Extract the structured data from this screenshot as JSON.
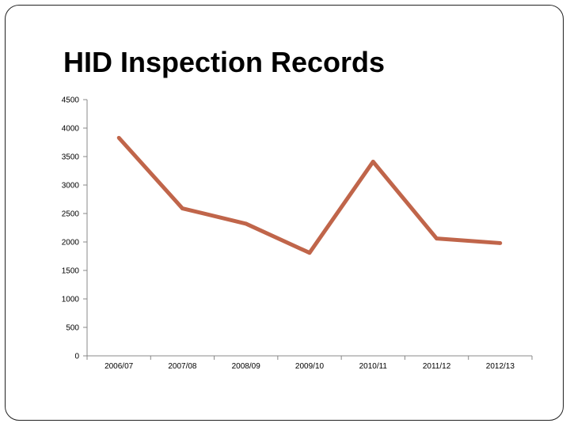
{
  "chart_data": {
    "type": "line",
    "title": "HID Inspection Records",
    "categories": [
      "2006/07",
      "2007/08",
      "2008/09",
      "2009/10",
      "2010/11",
      "2011/12",
      "2012/13"
    ],
    "series": [
      {
        "values": [
          3830,
          2590,
          2320,
          1810,
          3410,
          2060,
          1980
        ],
        "color": "#c0654a"
      }
    ],
    "ylim": [
      0,
      4500
    ],
    "yticks": [
      "0",
      "500",
      "1000",
      "1500",
      "2000",
      "2500",
      "3000",
      "3500",
      "4000",
      "4500"
    ],
    "xlabel": "",
    "ylabel": "",
    "grid": false,
    "legend": "none"
  }
}
